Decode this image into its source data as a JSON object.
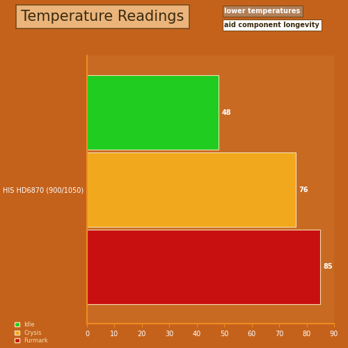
{
  "chart_data": {
    "type": "bar",
    "orientation": "horizontal",
    "title": "Temperature Readings",
    "annotations": [
      "lower temperatures",
      "aid component longevity"
    ],
    "categories": [
      "HIS HD6870 (900/1050)"
    ],
    "series": [
      {
        "name": "Idle",
        "color": "#1fcc1f",
        "values": [
          48
        ]
      },
      {
        "name": "Crysis",
        "color": "#f2a81c",
        "values": [
          76
        ]
      },
      {
        "name": "Furmark",
        "color": "#c81010",
        "values": [
          85
        ]
      }
    ],
    "xlim": [
      0,
      90
    ],
    "xticks": [
      0,
      10,
      20,
      30,
      40,
      50,
      60,
      70,
      80,
      90
    ],
    "data_labels": true,
    "legend": "lower left",
    "grid": false
  }
}
